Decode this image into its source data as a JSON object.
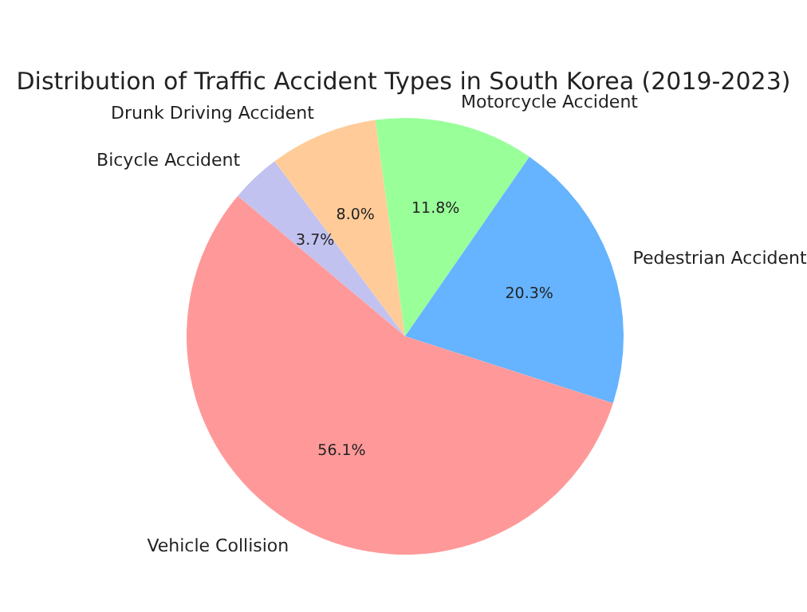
{
  "chart_data": {
    "type": "pie",
    "title": "Distribution of Traffic Accident Types in South Korea (2019-2023)",
    "categories": [
      "Bicycle Accident",
      "Drunk Driving Accident",
      "Motorcycle Accident",
      "Pedestrian Accident",
      "Vehicle Collision"
    ],
    "values": [
      3.7,
      8.0,
      11.8,
      20.3,
      56.1
    ],
    "colors": [
      "#c2c2f0",
      "#ffcc99",
      "#99ff99",
      "#66b3ff",
      "#ff9999"
    ],
    "value_labels": [
      "3.7%",
      "8.0%",
      "11.8%",
      "20.3%",
      "56.1%"
    ]
  }
}
